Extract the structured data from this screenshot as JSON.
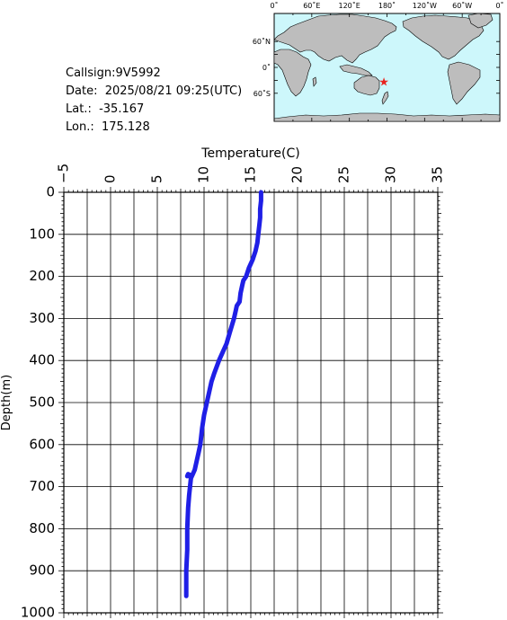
{
  "info": {
    "callsign": "Callsign:9V5992",
    "date": "Date:  2025/08/21 09:25(UTC)",
    "lat": "Lat.:  -35.167",
    "lon": "Lon.:  175.128"
  },
  "map": {
    "lon_labels": [
      "0˚",
      "60˚E",
      "120˚E",
      "180˚",
      "120˚W",
      "60˚W",
      "0˚"
    ],
    "lat_labels": [
      "60˚N",
      "0˚",
      "60˚S"
    ],
    "ocean_color": "#cdf7fb",
    "land_color": "#bdbdbd",
    "marker": {
      "lat": -35.167,
      "lon": 175.128,
      "color": "#e8231e",
      "icon": "star-icon"
    }
  },
  "chart_data": {
    "type": "line",
    "xlabel": "Temperature(C)",
    "ylabel": "Depth(m)",
    "xlim": [
      -5,
      35
    ],
    "ylim": [
      0,
      1000
    ],
    "x_ticks": [
      "-5",
      "0",
      "5",
      "10",
      "15",
      "20",
      "25",
      "30",
      "35"
    ],
    "y_ticks": [
      "0",
      "100",
      "200",
      "300",
      "400",
      "500",
      "600",
      "700",
      "800",
      "900",
      "1000"
    ],
    "grid": true,
    "line_color": "#1f1fe6",
    "series": [
      {
        "x": [
          16.1,
          16.1,
          16.0,
          16.0,
          15.9,
          15.8,
          15.7,
          15.5,
          15.2,
          14.8,
          14.5,
          14.2,
          14.1,
          13.9,
          13.8,
          13.5,
          13.4,
          13.2,
          12.8,
          12.4,
          12.0,
          11.6,
          11.1,
          10.8,
          10.6,
          10.3,
          10.0,
          9.8,
          9.6,
          9.4,
          9.2,
          9.0,
          8.8,
          8.6,
          8.4,
          8.3,
          8.2,
          8.5,
          8.6,
          8.5,
          8.4,
          8.3,
          8.2,
          8.2,
          8.1,
          8.1
        ],
        "y": [
          0,
          20,
          40,
          60,
          80,
          100,
          120,
          140,
          160,
          180,
          200,
          210,
          220,
          240,
          260,
          270,
          280,
          300,
          330,
          360,
          380,
          400,
          430,
          450,
          470,
          500,
          530,
          560,
          600,
          620,
          640,
          660,
          670,
          680,
          672,
          670,
          675,
          672,
          680,
          700,
          720,
          750,
          800,
          850,
          900,
          960
        ]
      }
    ]
  }
}
